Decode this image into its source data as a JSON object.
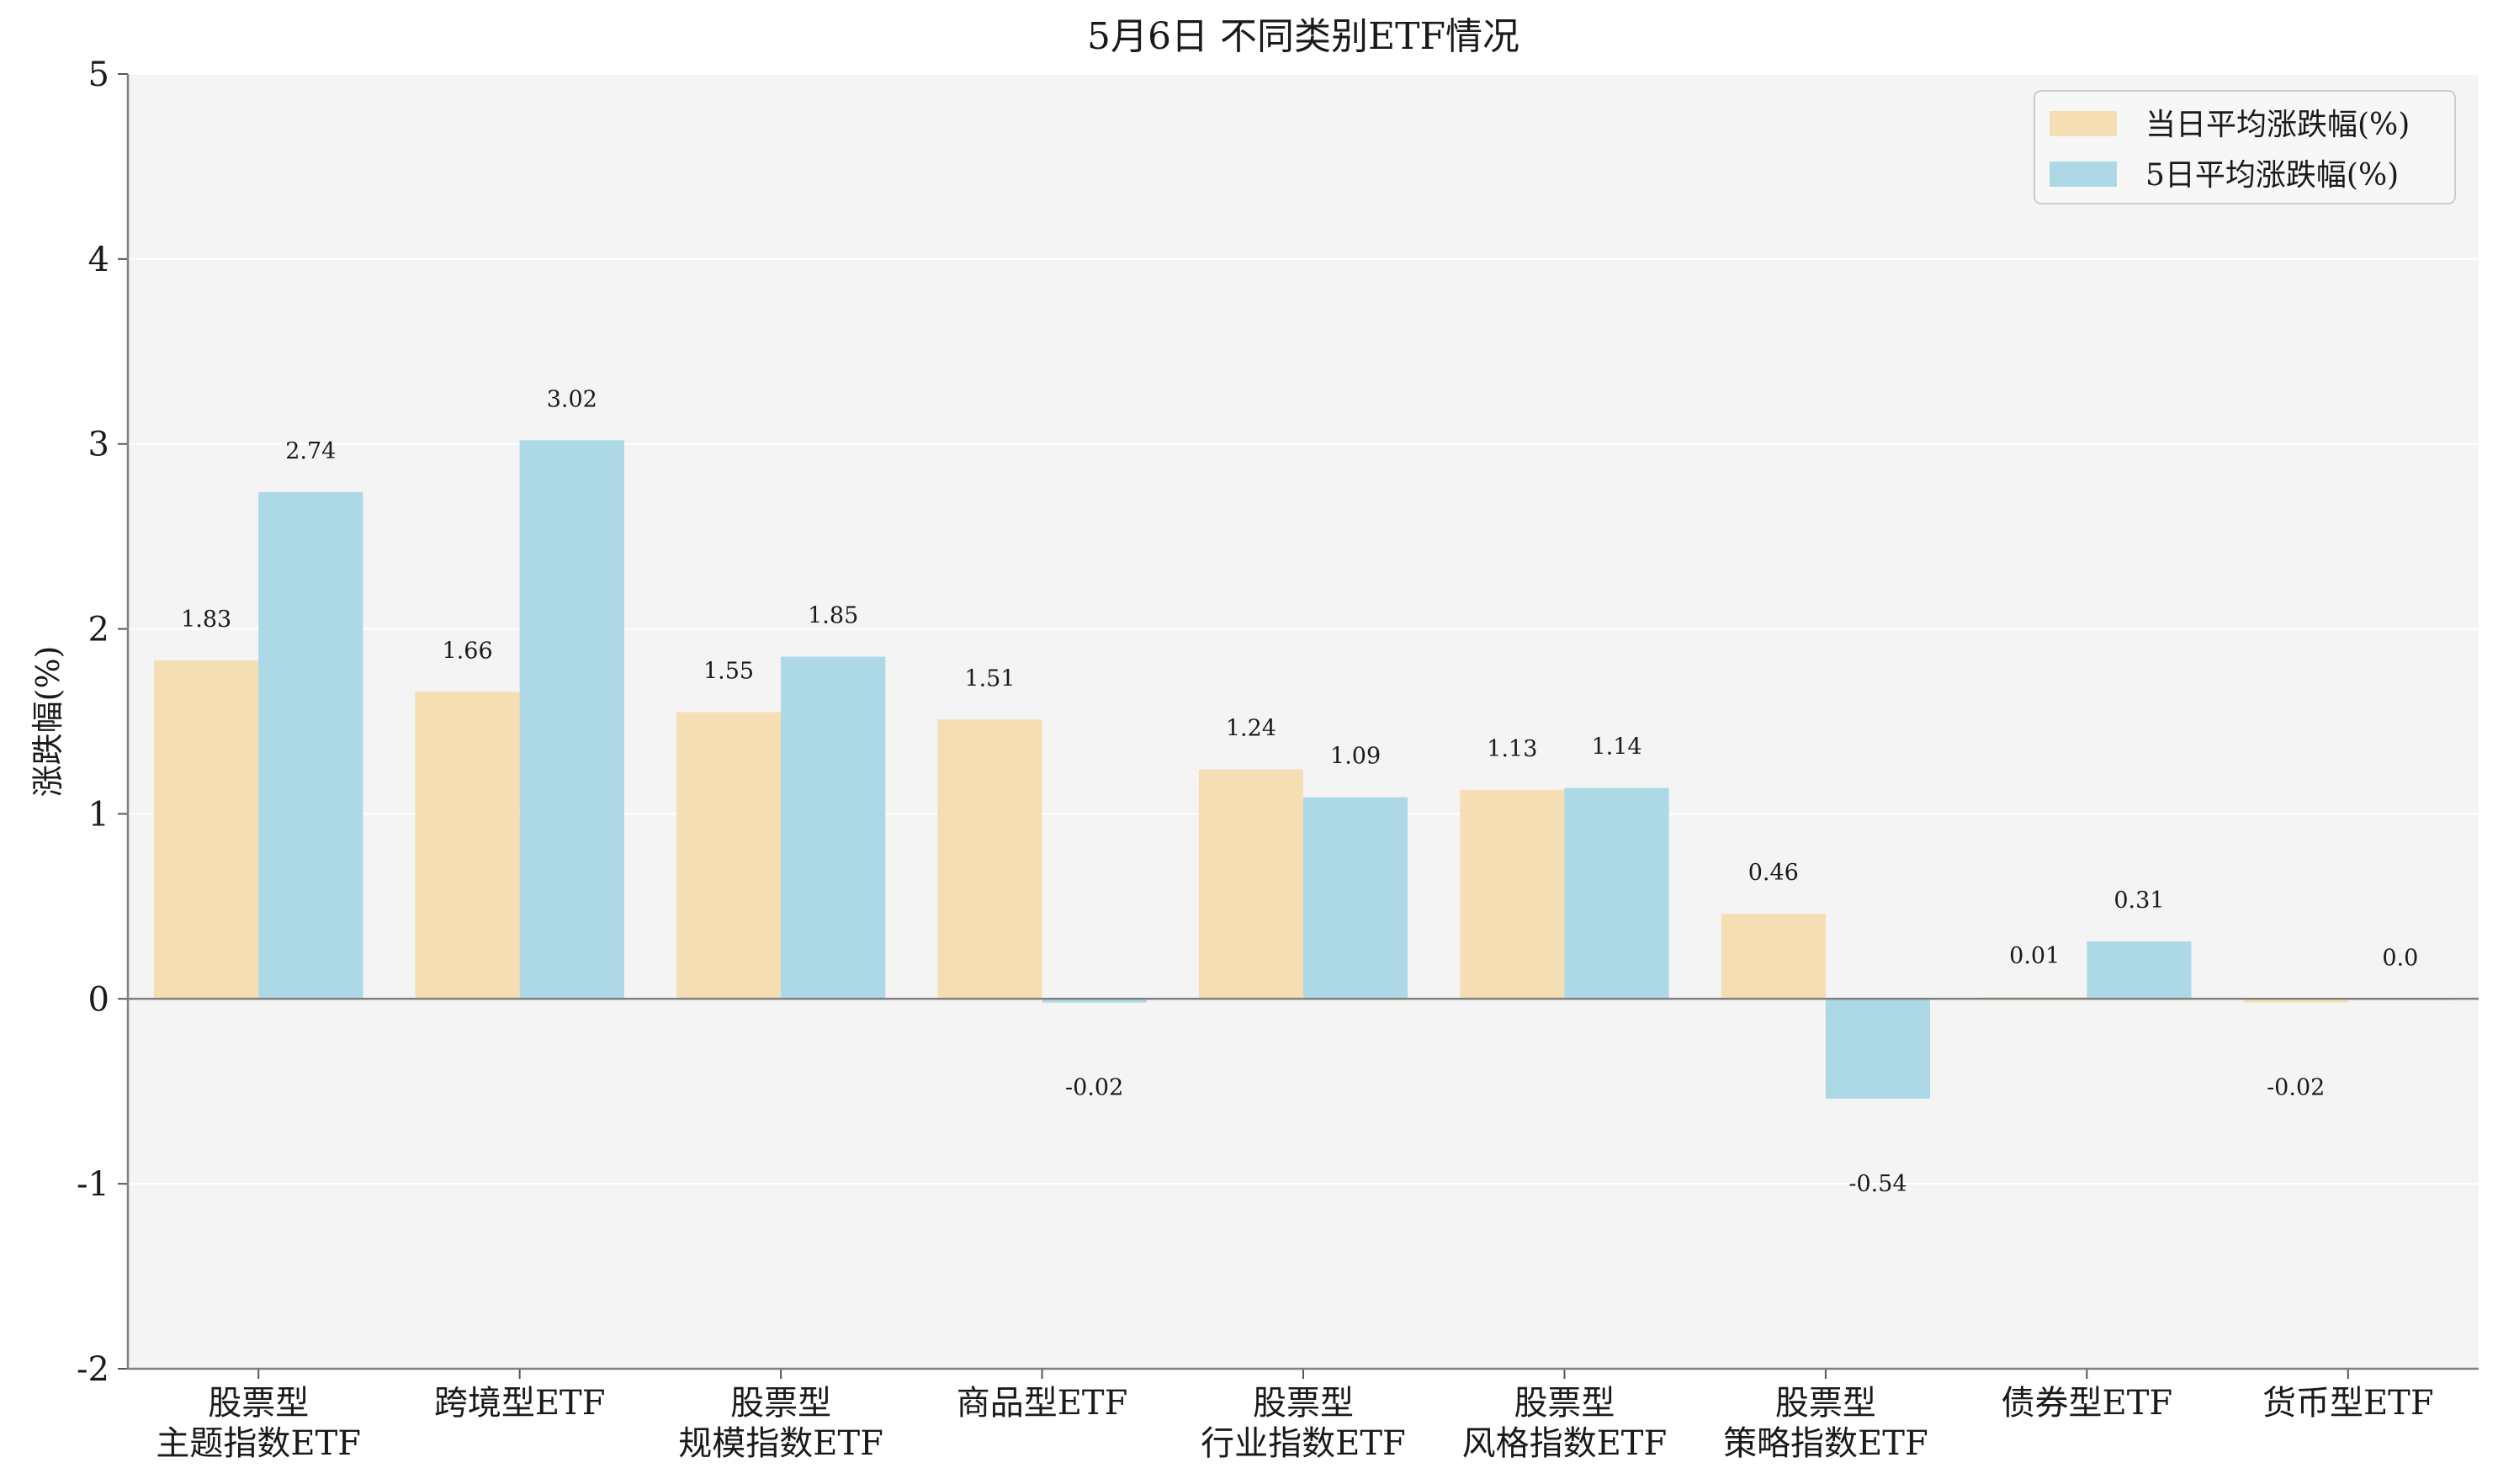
{
  "chart_data": {
    "type": "bar",
    "title": "5月6日 不同类别ETF情况",
    "xlabel": "",
    "ylabel": "涨跌幅(%)",
    "ylim": [
      -2,
      5
    ],
    "yticks": [
      -2,
      -1,
      0,
      1,
      2,
      3,
      4,
      5
    ],
    "grid": true,
    "legend_position": "top-right",
    "categories": [
      [
        "股票型",
        "主题指数ETF"
      ],
      [
        "跨境型ETF"
      ],
      [
        "股票型",
        "规模指数ETF"
      ],
      [
        "商品型ETF"
      ],
      [
        "股票型",
        "行业指数ETF"
      ],
      [
        "股票型",
        "风格指数ETF"
      ],
      [
        "股票型",
        "策略指数ETF"
      ],
      [
        "债券型ETF"
      ],
      [
        "货币型ETF"
      ]
    ],
    "series": [
      {
        "name": "当日平均涨跌幅(%)",
        "color": "#f5deb3",
        "values": [
          1.83,
          1.66,
          1.55,
          1.51,
          1.24,
          1.13,
          0.46,
          0.01,
          -0.02
        ],
        "labels": [
          "1.83",
          "1.66",
          "1.55",
          "1.51",
          "1.24",
          "1.13",
          "0.46",
          "0.01",
          "-0.02"
        ]
      },
      {
        "name": "5日平均涨跌幅(%)",
        "color": "#add8e6",
        "values": [
          2.74,
          3.02,
          1.85,
          -0.02,
          1.09,
          1.14,
          -0.54,
          0.31,
          0.0
        ],
        "labels": [
          "2.74",
          "3.02",
          "1.85",
          "-0.02",
          "1.09",
          "1.14",
          "-0.54",
          "0.31",
          "0.0"
        ]
      }
    ]
  }
}
